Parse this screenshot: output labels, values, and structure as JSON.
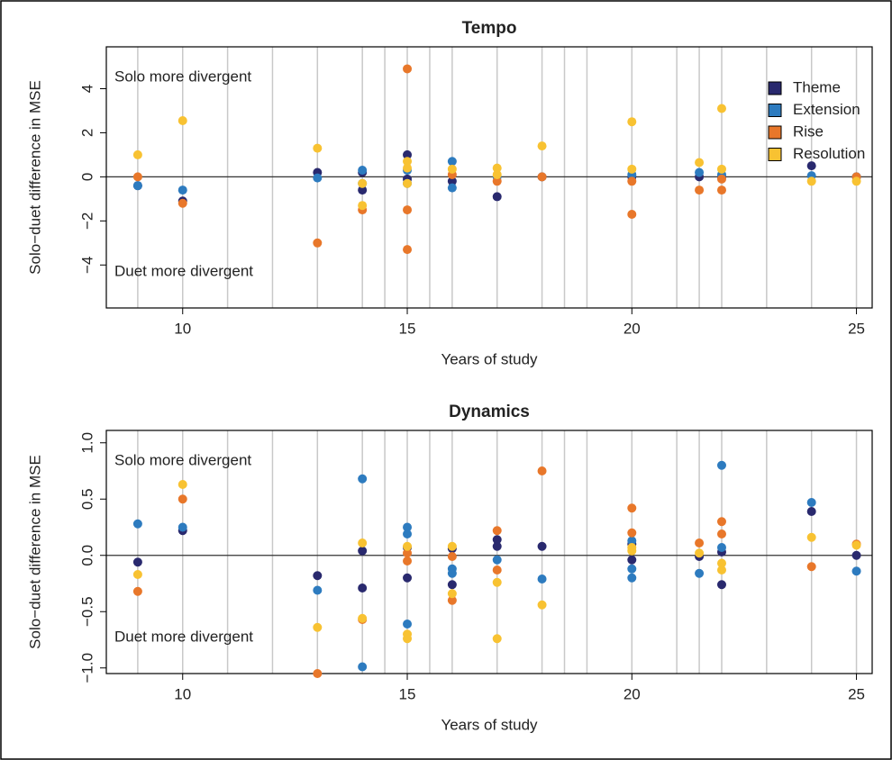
{
  "chart_data": [
    {
      "type": "scatter",
      "title": "Tempo",
      "xlabel": "Years of study",
      "ylabel": "Solo−duet difference in MSE",
      "annotations": [
        "Solo more divergent",
        "Duet more divergent"
      ],
      "xlim": [
        8.3,
        25.35
      ],
      "ylim": [
        -5.95,
        5.9
      ],
      "xticks": [
        10,
        15,
        20,
        25
      ],
      "yticks": [
        {
          "value": -4,
          "label": "−4"
        },
        {
          "value": -2,
          "label": "−2"
        },
        0,
        2,
        4
      ],
      "xgrid": [
        9,
        10,
        11,
        12,
        13,
        14,
        14.5,
        15,
        15.5,
        16,
        17,
        18,
        18.5,
        19,
        20,
        21,
        21.5,
        22,
        23,
        24,
        25
      ],
      "hline": 0,
      "legend": "top-right",
      "series": [
        {
          "name": "Theme",
          "color": "#29296e",
          "x": [
            9,
            10,
            13,
            14,
            14,
            15,
            15,
            16,
            17,
            18,
            20,
            21.5,
            22,
            24,
            25
          ],
          "y": [
            -0.4,
            -1.1,
            0.2,
            0.2,
            -0.6,
            1.0,
            -0.1,
            -0.2,
            -0.9,
            0,
            0,
            0,
            0,
            0.5,
            0
          ]
        },
        {
          "name": "Extension",
          "color": "#2d7bbf",
          "x": [
            9,
            10,
            13,
            14,
            14,
            15,
            15,
            16,
            16,
            17,
            20,
            21.5,
            22,
            24,
            25
          ],
          "y": [
            -0.4,
            -0.6,
            -0.05,
            0.3,
            -0.3,
            0.3,
            -0.3,
            0.7,
            -0.5,
            0,
            0.1,
            0.2,
            0.1,
            0.05,
            0
          ]
        },
        {
          "name": "Rise",
          "color": "#e8772a",
          "x": [
            9,
            10,
            13,
            14,
            15,
            15,
            15,
            16,
            17,
            18,
            20,
            20,
            21.5,
            22,
            22,
            25
          ],
          "y": [
            0,
            -1.2,
            -3,
            -1.5,
            4.9,
            -1.5,
            -3.3,
            0.1,
            -0.2,
            0,
            -0.2,
            -1.7,
            -0.6,
            -0.6,
            -0.1,
            0
          ]
        },
        {
          "name": "Resolution",
          "color": "#f8c232",
          "x": [
            9,
            10,
            13,
            14,
            14,
            15,
            15,
            15,
            16,
            17,
            17,
            18,
            20,
            20,
            21.5,
            22,
            22,
            24,
            25
          ],
          "y": [
            1,
            2.55,
            1.3,
            -0.3,
            -1.3,
            0.7,
            0.4,
            -0.3,
            0.35,
            0.4,
            0.1,
            1.4,
            2.5,
            0.35,
            0.65,
            3.1,
            0.35,
            -0.2,
            -0.2
          ]
        }
      ]
    },
    {
      "type": "scatter",
      "title": "Dynamics",
      "xlabel": "Years of study",
      "ylabel": "Solo−duet difference in MSE",
      "annotations": [
        "Solo more divergent",
        "Duet more divergent"
      ],
      "xlim": [
        8.3,
        25.35
      ],
      "ylim": [
        -1.05,
        1.11
      ],
      "xticks": [
        10,
        15,
        20,
        25
      ],
      "yticks": [
        {
          "value": -1,
          "label": "−1.0"
        },
        {
          "value": -0.5,
          "label": "−0.5"
        },
        {
          "value": 0,
          "label": "0.0"
        },
        0.5,
        {
          "value": 1,
          "label": "1.0"
        }
      ],
      "xgrid": [
        9,
        10,
        11,
        12,
        13,
        14,
        14.5,
        15,
        15.5,
        16,
        17,
        18,
        18.5,
        19,
        20,
        21,
        21.5,
        22,
        23,
        24,
        25
      ],
      "hline": 0,
      "series": [
        {
          "color": "#29296e",
          "x": [
            9,
            10,
            13,
            14,
            14,
            15,
            15,
            16,
            16,
            17,
            17,
            18,
            20,
            20,
            21.5,
            22,
            22,
            24,
            25
          ],
          "y": [
            -0.06,
            0.22,
            -0.18,
            -0.29,
            0.04,
            -0.2,
            0.07,
            -0.26,
            0.06,
            0.08,
            0.14,
            0.08,
            -0.04,
            0.1,
            -0.01,
            0.03,
            -0.26,
            0.39,
            0
          ]
        },
        {
          "color": "#2d7bbf",
          "x": [
            9,
            10,
            13,
            14,
            14,
            15,
            15,
            15,
            16,
            16,
            17,
            18,
            20,
            20,
            20,
            21.5,
            22,
            22,
            24,
            25
          ],
          "y": [
            0.28,
            0.25,
            -0.31,
            0.68,
            -0.99,
            0.25,
            0.19,
            -0.61,
            -0.12,
            -0.16,
            -0.04,
            -0.21,
            -0.2,
            -0.12,
            0.13,
            -0.16,
            0.8,
            0.07,
            0.47,
            -0.14
          ]
        },
        {
          "color": "#e8772a",
          "x": [
            9,
            10,
            13,
            14,
            15,
            15,
            16,
            16,
            17,
            17,
            18,
            20,
            20,
            21.5,
            22,
            22,
            24,
            25
          ],
          "y": [
            -0.32,
            0.5,
            -1.05,
            -0.57,
            -0.05,
            0.02,
            -0.4,
            -0.01,
            0.22,
            -0.13,
            0.75,
            0.42,
            0.2,
            0.11,
            0.3,
            0.19,
            -0.1,
            0.1
          ]
        },
        {
          "color": "#f8c232",
          "x": [
            9,
            10,
            13,
            14,
            14,
            15,
            15,
            15,
            16,
            16,
            17,
            17,
            18,
            20,
            20,
            21.5,
            22,
            22,
            24,
            25
          ],
          "y": [
            -0.17,
            0.63,
            -0.64,
            0.11,
            -0.56,
            -0.7,
            -0.74,
            0.08,
            0.08,
            -0.34,
            -0.24,
            -0.74,
            -0.44,
            0.04,
            0.07,
            0.02,
            -0.07,
            -0.13,
            0.16,
            0.09
          ]
        }
      ]
    }
  ]
}
